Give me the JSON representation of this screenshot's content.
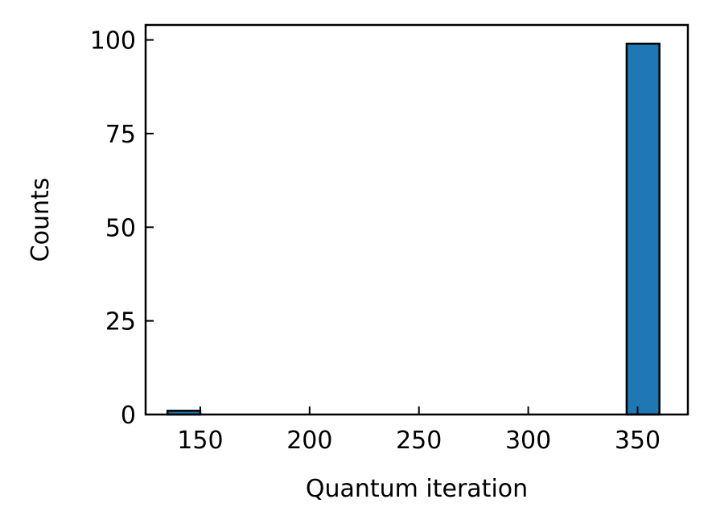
{
  "chart_data": {
    "type": "bar",
    "subtype": "histogram",
    "title": "",
    "xlabel": "Quantum iteration",
    "ylabel": "Counts",
    "xlim": [
      125,
      373
    ],
    "ylim": [
      0,
      104
    ],
    "xticks": [
      150,
      200,
      250,
      300,
      350
    ],
    "yticks": [
      0,
      25,
      50,
      75,
      100
    ],
    "tick_direction": "in",
    "grid": false,
    "legend": "none",
    "bar_color": "#1f77b4",
    "edge_color": "#000000",
    "bins": [
      {
        "x0": 135,
        "x1": 150,
        "count": 1
      },
      {
        "x0": 345,
        "x1": 360,
        "count": 99
      }
    ]
  }
}
